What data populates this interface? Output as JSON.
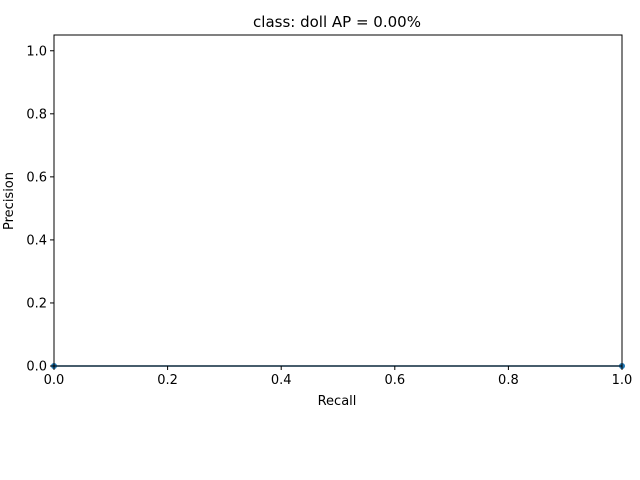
{
  "chart_data": {
    "type": "line",
    "title": "class: doll AP = 0.00%",
    "xlabel": "Recall",
    "ylabel": "Precision",
    "xlim": [
      0.0,
      1.0
    ],
    "ylim": [
      0.0,
      1.05
    ],
    "x_ticks": [
      "0.0",
      "0.2",
      "0.4",
      "0.6",
      "0.8",
      "1.0"
    ],
    "y_ticks": [
      "0.0",
      "0.2",
      "0.4",
      "0.6",
      "0.8",
      "1.0"
    ],
    "grid": false,
    "series": [
      {
        "x": [
          0.0,
          1.0
        ],
        "y": [
          0.0,
          0.0
        ],
        "color": "#1f77b4",
        "fill": true,
        "markers": true
      }
    ]
  }
}
